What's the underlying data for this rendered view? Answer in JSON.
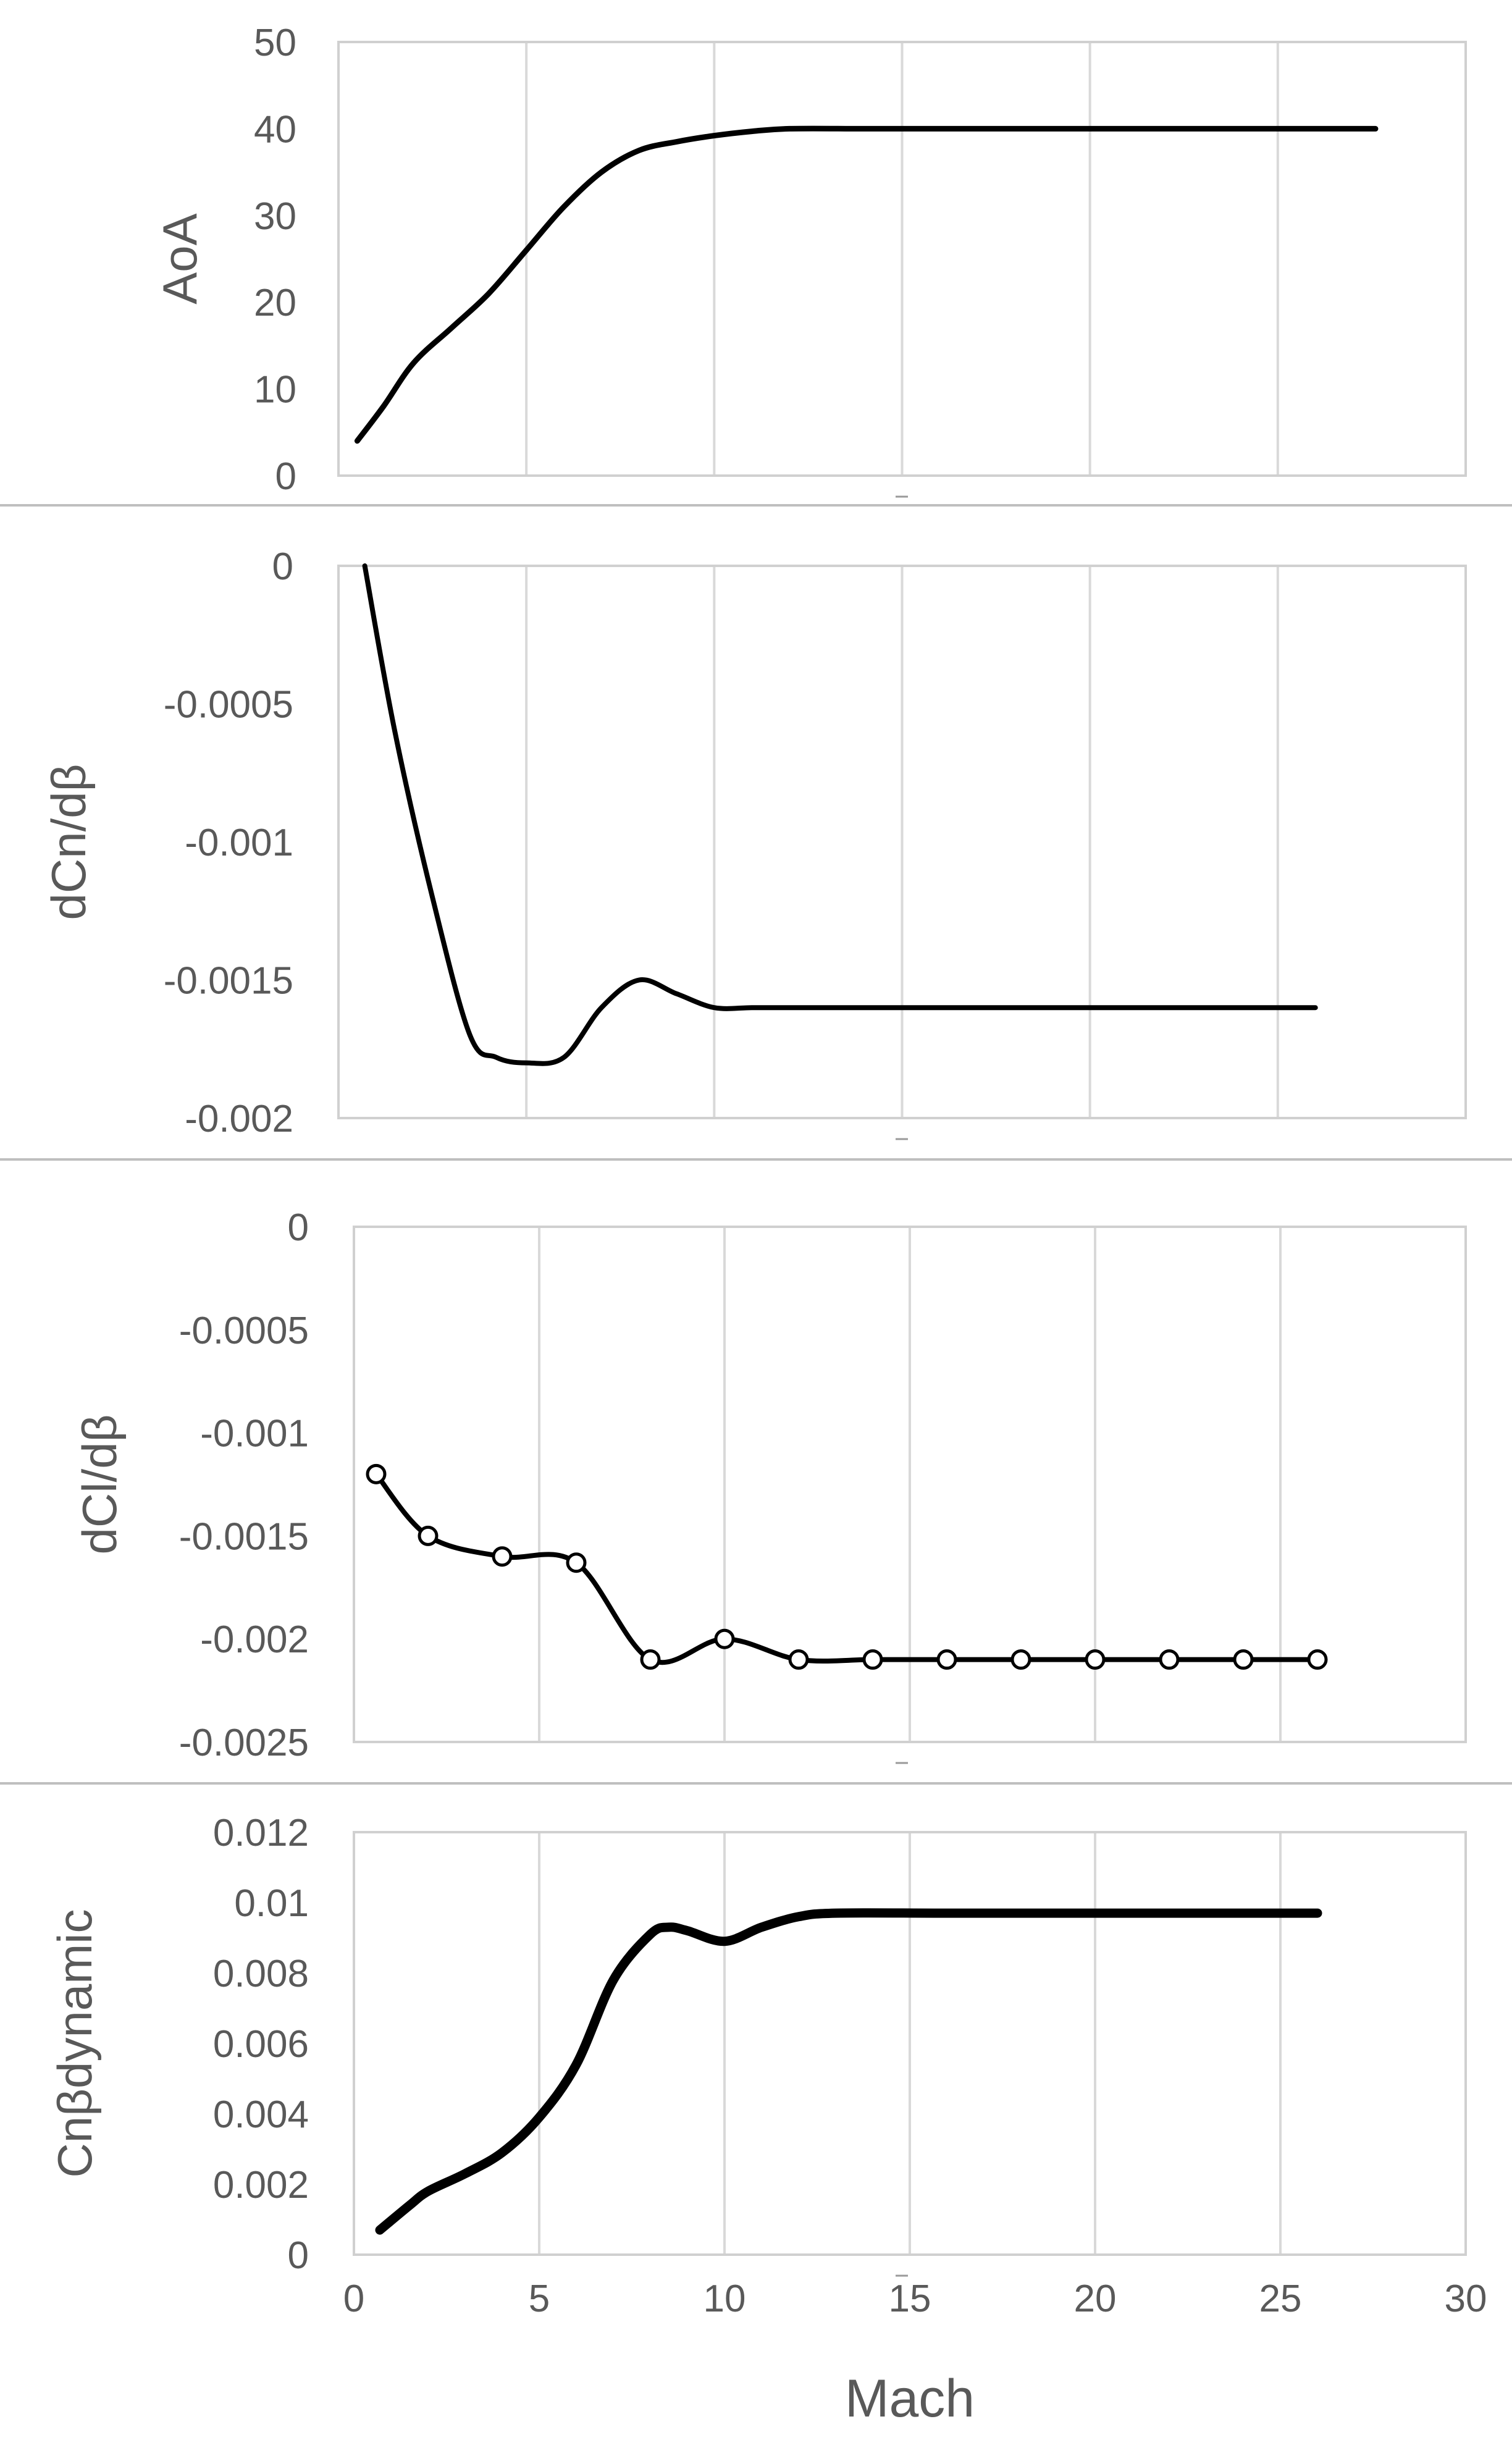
{
  "chart_data": [
    {
      "type": "line",
      "ylabel": "AoA",
      "xlim": [
        0,
        30
      ],
      "ylim": [
        0,
        50
      ],
      "yticks": [
        "0",
        "10",
        "20",
        "30",
        "40",
        "50"
      ],
      "grid": "vertical",
      "marker": "none",
      "series": [
        {
          "x": [
            0.5,
            1.2,
            2,
            3,
            4,
            5,
            6,
            7,
            8,
            9,
            10,
            11,
            12,
            14,
            16,
            18,
            20,
            22,
            24,
            26,
            27.6
          ],
          "y": [
            4,
            8,
            13,
            17,
            21,
            26,
            31,
            35,
            37.5,
            38.5,
            39.2,
            39.7,
            40,
            40,
            40,
            40,
            40,
            40,
            40,
            40,
            40
          ]
        }
      ]
    },
    {
      "type": "line",
      "ylabel": "dCn/dβ",
      "xlim": [
        0,
        30
      ],
      "ylim": [
        -0.002,
        0
      ],
      "yticks": [
        "-0.002",
        "-0.0015",
        "-0.001",
        "-0.0005",
        "0"
      ],
      "grid": "vertical",
      "marker": "none",
      "series": [
        {
          "x": [
            0.7,
            1.5,
            2.5,
            3.5,
            4.2,
            5,
            6,
            7,
            8,
            9,
            10,
            11,
            12,
            16,
            20,
            24,
            26
          ],
          "y": [
            0,
            -0.0006,
            -0.0012,
            -0.0017,
            -0.00178,
            -0.0018,
            -0.00178,
            -0.0016,
            -0.0015,
            -0.00155,
            -0.0016,
            -0.0016,
            -0.0016,
            -0.0016,
            -0.0016,
            -0.0016,
            -0.0016
          ]
        }
      ]
    },
    {
      "type": "line",
      "ylabel": "dCl/dβ",
      "xlim": [
        0,
        30
      ],
      "ylim": [
        -0.0025,
        0
      ],
      "yticks": [
        "-0.0025",
        "-0.002",
        "-0.0015",
        "-0.001",
        "-0.0005",
        "0"
      ],
      "grid": "vertical",
      "marker": "circle",
      "series": [
        {
          "x": [
            0.6,
            2,
            4,
            6,
            8,
            10,
            12,
            14,
            16,
            18,
            20,
            22,
            24,
            26
          ],
          "y": [
            -0.0012,
            -0.0015,
            -0.0016,
            -0.00163,
            -0.0021,
            -0.002,
            -0.0021,
            -0.0021,
            -0.0021,
            -0.0021,
            -0.0021,
            -0.0021,
            -0.0021,
            -0.0021
          ]
        }
      ]
    },
    {
      "type": "line",
      "ylabel": "Cnβdynamic",
      "xlabel": "Mach",
      "xlim": [
        0,
        30
      ],
      "ylim": [
        0,
        0.012
      ],
      "xticks": [
        "0",
        "5",
        "10",
        "15",
        "20",
        "25",
        "30"
      ],
      "yticks": [
        "0",
        "0.002",
        "0.004",
        "0.006",
        "0.008",
        "0.01",
        "0.012"
      ],
      "grid": "vertical",
      "marker": "none",
      "series": [
        {
          "x": [
            0.7,
            1.5,
            2,
            3,
            4,
            5,
            6,
            7,
            8,
            8.5,
            9,
            10,
            11,
            12,
            13,
            16,
            20,
            24,
            26
          ],
          "y": [
            0.0007,
            0.0014,
            0.0018,
            0.0023,
            0.0029,
            0.0039,
            0.0054,
            0.0078,
            0.0091,
            0.0093,
            0.0092,
            0.0089,
            0.0093,
            0.0096,
            0.0097,
            0.0097,
            0.0097,
            0.0097,
            0.0097
          ]
        }
      ]
    }
  ]
}
